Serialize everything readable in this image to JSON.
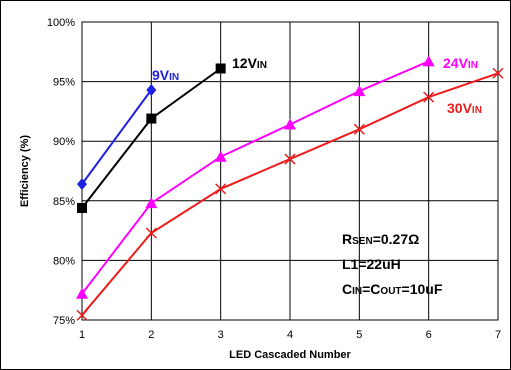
{
  "chart_data": {
    "type": "line",
    "title": "",
    "xlabel": "LED Cascaded Number",
    "ylabel": "Efficiency (%)",
    "xlim": [
      1,
      7
    ],
    "ylim": [
      75,
      100
    ],
    "x_ticks": [
      "1",
      "2",
      "3",
      "4",
      "5",
      "6",
      "7"
    ],
    "y_ticks": [
      "75%",
      "80%",
      "85%",
      "90%",
      "95%",
      "100%"
    ],
    "grid": true,
    "series": [
      {
        "name_main": "9V",
        "name_sub": "IN",
        "color": "#2020e0",
        "marker": "diamond",
        "x": [
          1,
          2
        ],
        "y": [
          86.4,
          94.3
        ]
      },
      {
        "name_main": "12V",
        "name_sub": "IN",
        "color": "#000000",
        "marker": "square",
        "x": [
          1,
          2,
          3
        ],
        "y": [
          84.4,
          91.9,
          96.1
        ]
      },
      {
        "name_main": "24V",
        "name_sub": "IN",
        "color": "#ff00ff",
        "marker": "triangle",
        "x": [
          1,
          2,
          3,
          4,
          5,
          6
        ],
        "y": [
          77.2,
          84.8,
          88.7,
          91.4,
          94.2,
          96.7
        ]
      },
      {
        "name_main": "30V",
        "name_sub": "IN",
        "color": "#ee1c1c",
        "marker": "x",
        "x": [
          1,
          2,
          3,
          4,
          5,
          6,
          7
        ],
        "y": [
          75.4,
          82.3,
          86.0,
          88.5,
          91.0,
          93.7,
          95.7
        ]
      }
    ],
    "annotations": [
      {
        "main": "R",
        "sub": "SEN",
        "rest": "=0.27Ω"
      },
      {
        "main": "L1=22uH",
        "sub": "",
        "rest": ""
      },
      {
        "main": "C",
        "sub": "IN",
        "rest": "=C",
        "sub2": "OUT",
        "rest2": "=10uF"
      }
    ]
  }
}
